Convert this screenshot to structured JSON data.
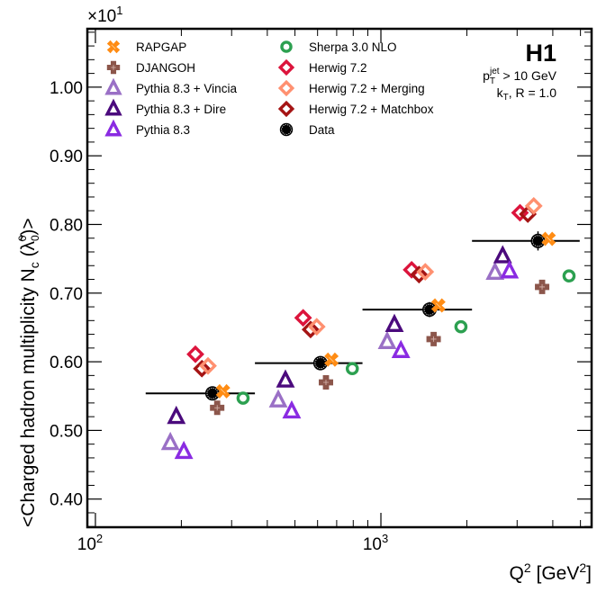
{
  "chart_data": {
    "type": "scatter",
    "title": "",
    "xlabel": "Q² [GeV²]",
    "xlabel_parts": {
      "base": "Q",
      "sup": "2",
      "unit_open": " [GeV",
      "unit_sup": "2",
      "unit_close": "]"
    },
    "ylabel": "<Charged hadron multiplicity N_c (λ̃₀⁰)>",
    "ylabel_parts": {
      "pre": "<Charged hadron multiplicity N",
      "sub_c": "c",
      "paren_open": " (",
      "lambda": "λ̃",
      "sub0": "0",
      "sup0": "0",
      "paren_close": ")>"
    },
    "y_multiplier": {
      "base": "×10",
      "exp": "1"
    },
    "xscale": "log",
    "xlim": [
      93.7,
      5470
    ],
    "ylim": [
      0.359,
      1.085
    ],
    "x_major_ticks": [
      {
        "value": 100,
        "base": "10",
        "exp": "2"
      },
      {
        "value": 1000,
        "base": "10",
        "exp": "3"
      }
    ],
    "x_minor_ticks": [
      200,
      300,
      400,
      500,
      600,
      700,
      800,
      900,
      2000,
      3000,
      4000,
      5000
    ],
    "y_major_ticks": [
      0.4,
      0.5,
      0.6,
      0.7,
      0.8,
      0.9,
      1.0
    ],
    "y_tick_labels": [
      "0.40",
      "0.50",
      "0.60",
      "0.70",
      "0.80",
      "0.90",
      "1.00"
    ],
    "y_minor_step": 0.02,
    "grid": false,
    "legend_position": "top-left",
    "annotations": {
      "experiment": "H1",
      "cut_pt": {
        "p": "p",
        "sub": "T",
        "sup": "jet",
        "rest": " > 10 GeV"
      },
      "cut_alg": {
        "k": "k",
        "sub": "T",
        "rest": ", R = 1.0"
      }
    },
    "bins": [
      {
        "low": 150,
        "high": 362
      },
      {
        "low": 362,
        "high": 862
      },
      {
        "low": 862,
        "high": 2085
      },
      {
        "low": 2085,
        "high": 4970
      }
    ],
    "series": [
      {
        "name": "RAPGAP",
        "marker": "cross",
        "color": "#ff8c14",
        "filled": true,
        "x": [
          280,
          671,
          1590,
          3870
        ],
        "values": [
          0.557,
          0.603,
          0.682,
          0.779
        ]
      },
      {
        "name": "DJANGOH",
        "marker": "plus",
        "color": "#8c564b",
        "filled": true,
        "x": [
          267,
          642,
          1530,
          3670
        ],
        "values": [
          0.533,
          0.57,
          0.633,
          0.709
        ]
      },
      {
        "name": "Pythia 8.3 + Vincia",
        "marker": "triangle",
        "color": "#9a70c6",
        "filled": false,
        "x": [
          183,
          437,
          1052,
          2510
        ],
        "values": [
          0.482,
          0.544,
          0.629,
          0.73
        ]
      },
      {
        "name": "Pythia 8.3 + Dire",
        "marker": "triangle",
        "color": "#4b0a7d",
        "filled": false,
        "x": [
          192,
          463,
          1115,
          2670
        ],
        "values": [
          0.52,
          0.573,
          0.654,
          0.754
        ]
      },
      {
        "name": "Pythia 8.3",
        "marker": "triangle",
        "color": "#8a2be2",
        "filled": false,
        "x": [
          204,
          487,
          1175,
          2820
        ],
        "values": [
          0.469,
          0.528,
          0.616,
          0.732
        ]
      },
      {
        "name": "Sherpa 3.0 NLO",
        "marker": "circle",
        "color": "#2ca050",
        "filled": false,
        "x": [
          329,
          794,
          1907,
          4560
        ],
        "values": [
          0.547,
          0.59,
          0.651,
          0.725
        ]
      },
      {
        "name": "Herwig 7.2",
        "marker": "diamond",
        "color": "#dc143c",
        "filled": false,
        "x": [
          224,
          534,
          1281,
          3070
        ],
        "values": [
          0.611,
          0.664,
          0.734,
          0.817
        ]
      },
      {
        "name": "Herwig 7.2 + Merging",
        "marker": "diamond",
        "color": "#ff9070",
        "filled": false,
        "x": [
          248,
          596,
          1430,
          3430
        ],
        "values": [
          0.594,
          0.651,
          0.731,
          0.827
        ]
      },
      {
        "name": "Herwig 7.2 + Matchbox",
        "marker": "diamond",
        "color": "#a51414",
        "filled": false,
        "x": [
          236,
          567,
          1360,
          3270
        ],
        "values": [
          0.59,
          0.647,
          0.727,
          0.815
        ]
      },
      {
        "name": "Data",
        "marker": "data",
        "color": "#000000",
        "filled": true,
        "x": [
          257,
          614,
          1480,
          3550
        ],
        "values": [
          0.554,
          0.598,
          0.676,
          0.776
        ],
        "yerr": [
          0.005,
          0.006,
          0.007,
          0.01
        ]
      }
    ]
  }
}
